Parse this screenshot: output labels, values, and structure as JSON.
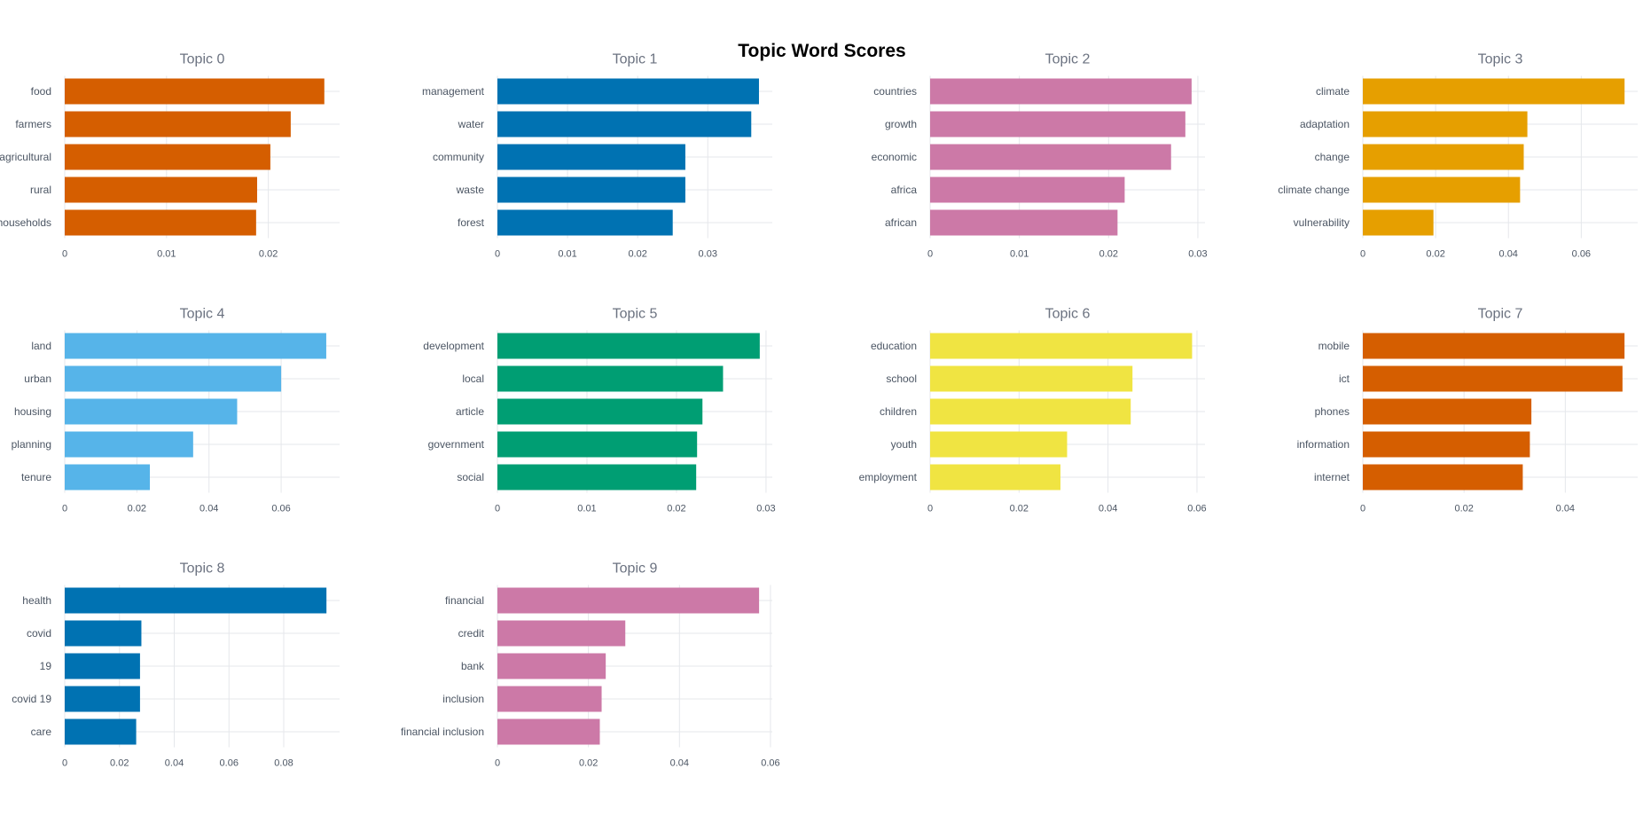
{
  "chart_data": {
    "type": "bar",
    "title": "Topic Word Scores",
    "panels": [
      {
        "subtitle": "Topic 0",
        "color": "#D55E00",
        "categories": [
          "food",
          "farmers",
          "agricultural",
          "rural",
          "households"
        ],
        "values": [
          0.0255,
          0.0222,
          0.0202,
          0.0189,
          0.0188
        ],
        "xticks": [
          0,
          0.01,
          0.02
        ],
        "xtick_labels": [
          "0",
          "0.01",
          "0.02"
        ],
        "xlim": [
          0,
          0.027
        ]
      },
      {
        "subtitle": "Topic 1",
        "color": "#0072B2",
        "categories": [
          "management",
          "water",
          "community",
          "waste",
          "forest"
        ],
        "values": [
          0.0373,
          0.0362,
          0.0268,
          0.0268,
          0.025
        ],
        "xticks": [
          0,
          0.01,
          0.02,
          0.03
        ],
        "xtick_labels": [
          "0",
          "0.01",
          "0.02",
          "0.03"
        ],
        "xlim": [
          0,
          0.0392
        ]
      },
      {
        "subtitle": "Topic 2",
        "color": "#CC79A7",
        "categories": [
          "countries",
          "growth",
          "economic",
          "africa",
          "african"
        ],
        "values": [
          0.0293,
          0.0286,
          0.027,
          0.0218,
          0.021
        ],
        "xticks": [
          0,
          0.01,
          0.02,
          0.03
        ],
        "xtick_labels": [
          "0",
          "0.01",
          "0.02",
          "0.03"
        ],
        "xlim": [
          0,
          0.0308
        ]
      },
      {
        "subtitle": "Topic 3",
        "color": "#E69F00",
        "categories": [
          "climate",
          "adaptation",
          "change",
          "climate change",
          "vulnerability"
        ],
        "values": [
          0.0719,
          0.0452,
          0.0442,
          0.0432,
          0.0194
        ],
        "xticks": [
          0,
          0.02,
          0.04,
          0.06
        ],
        "xtick_labels": [
          "0",
          "0.02",
          "0.04",
          "0.06"
        ],
        "xlim": [
          0,
          0.0755
        ]
      },
      {
        "subtitle": "Topic 4",
        "color": "#56B4E9",
        "categories": [
          "land",
          "urban",
          "housing",
          "planning",
          "tenure"
        ],
        "values": [
          0.0725,
          0.06,
          0.0478,
          0.0356,
          0.0236
        ],
        "xticks": [
          0,
          0.02,
          0.04,
          0.06
        ],
        "xtick_labels": [
          "0",
          "0.02",
          "0.04",
          "0.06"
        ],
        "xlim": [
          0,
          0.0762
        ]
      },
      {
        "subtitle": "Topic 5",
        "color": "#009E73",
        "categories": [
          "development",
          "local",
          "article",
          "government",
          "social"
        ],
        "values": [
          0.0293,
          0.0252,
          0.0229,
          0.0223,
          0.0222
        ],
        "xticks": [
          0,
          0.01,
          0.02,
          0.03
        ],
        "xtick_labels": [
          "0",
          "0.01",
          "0.02",
          "0.03"
        ],
        "xlim": [
          0,
          0.0307
        ]
      },
      {
        "subtitle": "Topic 6",
        "color": "#F0E442",
        "categories": [
          "education",
          "school",
          "children",
          "youth",
          "employment"
        ],
        "values": [
          0.0589,
          0.0455,
          0.0451,
          0.0308,
          0.0293
        ],
        "xticks": [
          0,
          0.02,
          0.04,
          0.06
        ],
        "xtick_labels": [
          "0",
          "0.02",
          "0.04",
          "0.06"
        ],
        "xlim": [
          0,
          0.0618
        ]
      },
      {
        "subtitle": "Topic 7",
        "color": "#D55E00",
        "categories": [
          "mobile",
          "ict",
          "phones",
          "information",
          "internet"
        ],
        "values": [
          0.0517,
          0.0513,
          0.0333,
          0.033,
          0.0316
        ],
        "xticks": [
          0,
          0.02,
          0.04
        ],
        "xtick_labels": [
          "0",
          "0.02",
          "0.04"
        ],
        "xlim": [
          0,
          0.0543
        ]
      },
      {
        "subtitle": "Topic 8",
        "color": "#0072B2",
        "categories": [
          "health",
          "covid",
          "19",
          "covid 19",
          "care"
        ],
        "values": [
          0.0956,
          0.028,
          0.0275,
          0.0275,
          0.0261
        ],
        "xticks": [
          0,
          0.02,
          0.04,
          0.06,
          0.08
        ],
        "xtick_labels": [
          "0",
          "0.02",
          "0.04",
          "0.06",
          "0.08"
        ],
        "xlim": [
          0,
          0.1004
        ]
      },
      {
        "subtitle": "Topic 9",
        "color": "#CC79A7",
        "categories": [
          "financial",
          "credit",
          "bank",
          "inclusion",
          "financial inclusion"
        ],
        "values": [
          0.0575,
          0.0281,
          0.0238,
          0.0229,
          0.0225
        ],
        "xticks": [
          0,
          0.02,
          0.04,
          0.06
        ],
        "xtick_labels": [
          "0",
          "0.02",
          "0.04",
          "0.06"
        ],
        "xlim": [
          0,
          0.0604
        ]
      }
    ]
  }
}
